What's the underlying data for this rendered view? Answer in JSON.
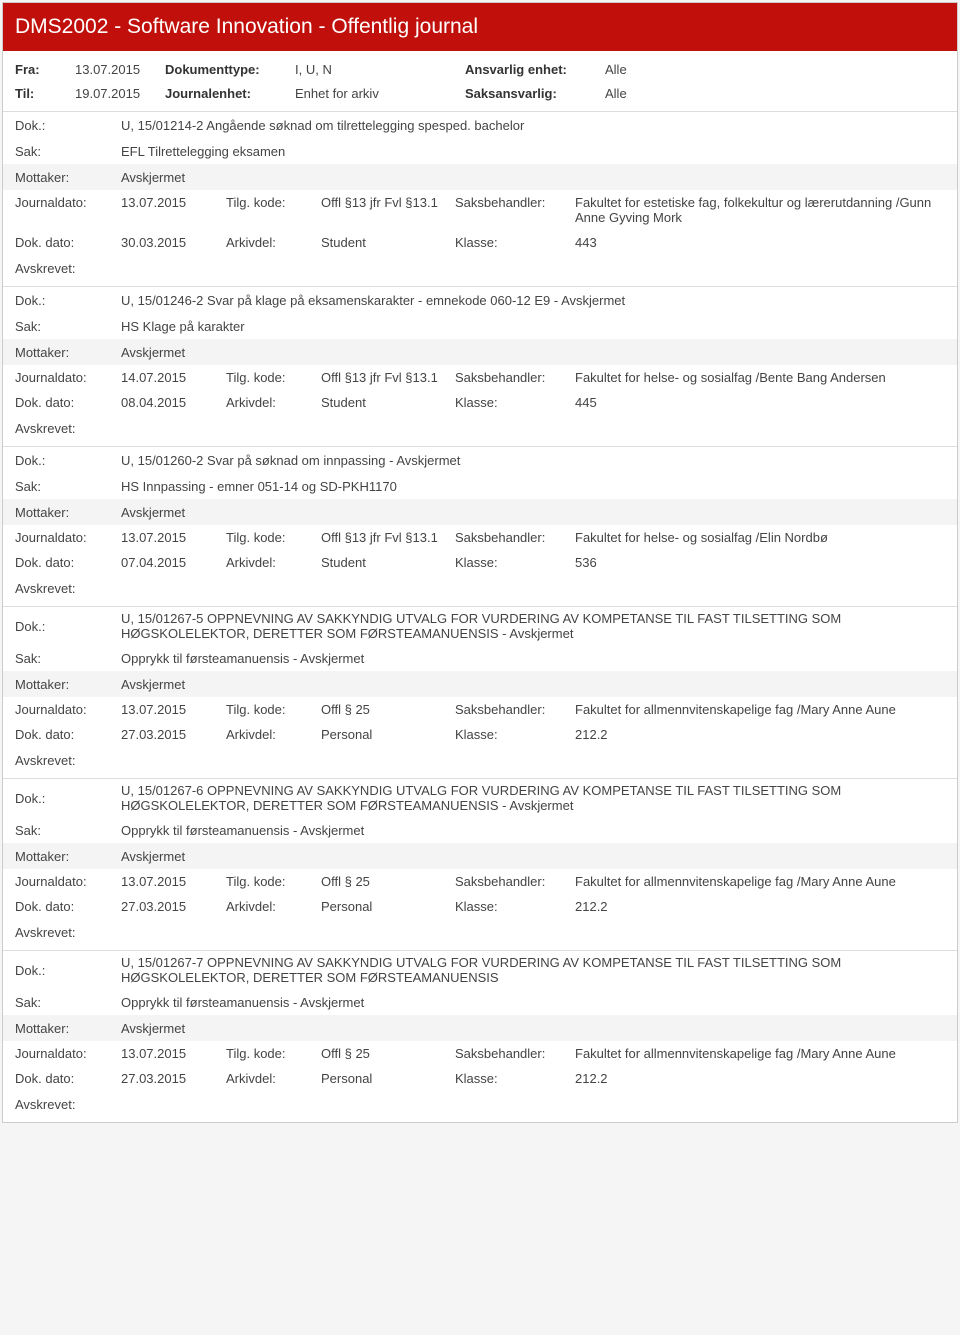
{
  "header": {
    "title": "DMS2002 - Software Innovation - Offentlig journal"
  },
  "filter": {
    "fra_label": "Fra:",
    "fra_value": "13.07.2015",
    "til_label": "Til:",
    "til_value": "19.07.2015",
    "doktype_label": "Dokumenttype:",
    "doktype_value": "I, U, N",
    "journalenhet_label": "Journalenhet:",
    "journalenhet_value": "Enhet for arkiv",
    "ansvarlig_label": "Ansvarlig enhet:",
    "ansvarlig_value": "Alle",
    "saksansvarlig_label": "Saksansvarlig:",
    "saksansvarlig_value": "Alle"
  },
  "labels": {
    "dok": "Dok.:",
    "sak": "Sak:",
    "mottaker": "Mottaker:",
    "journaldato": "Journaldato:",
    "tilgkode": "Tilg. kode:",
    "saksbehandler": "Saksbehandler:",
    "dokdato": "Dok. dato:",
    "arkivdel": "Arkivdel:",
    "klasse": "Klasse:",
    "avskrevet": "Avskrevet:"
  },
  "entries": [
    {
      "dok": "U, 15/01214-2 Angående søknad om tilrettelegging spesped. bachelor",
      "sak": "EFL Tilrettelegging eksamen",
      "mottaker": "Avskjermet",
      "journaldato": "13.07.2015",
      "tilgkode": "Offl §13 jfr Fvl §13.1",
      "saksbehandler": "Fakultet for estetiske fag, folkekultur og lærerutdanning /Gunn Anne Gyving Mork",
      "dokdato": "30.03.2015",
      "arkivdel": "Student",
      "klasse": "443"
    },
    {
      "dok": "U, 15/01246-2 Svar på klage på eksamenskarakter - emnekode 060-12 E9 - Avskjermet",
      "sak": "HS Klage på karakter",
      "mottaker": "Avskjermet",
      "journaldato": "14.07.2015",
      "tilgkode": "Offl §13 jfr Fvl §13.1",
      "saksbehandler": "Fakultet for helse- og sosialfag /Bente Bang Andersen",
      "dokdato": "08.04.2015",
      "arkivdel": "Student",
      "klasse": "445"
    },
    {
      "dok": "U, 15/01260-2 Svar på søknad om innpassing - Avskjermet",
      "sak": "HS Innpassing - emner 051-14 og SD-PKH1170",
      "mottaker": "Avskjermet",
      "journaldato": "13.07.2015",
      "tilgkode": "Offl §13 jfr Fvl §13.1",
      "saksbehandler": "Fakultet for helse- og sosialfag /Elin Nordbø",
      "dokdato": "07.04.2015",
      "arkivdel": "Student",
      "klasse": "536"
    },
    {
      "dok": "U, 15/01267-5 OPPNEVNING AV SAKKYNDIG UTVALG FOR VURDERING AV KOMPETANSE TIL FAST TILSETTING SOM HØGSKOLELEKTOR, DERETTER SOM FØRSTEAMANUENSIS - Avskjermet",
      "sak": "Opprykk til førsteamanuensis - Avskjermet",
      "mottaker": "Avskjermet",
      "journaldato": "13.07.2015",
      "tilgkode": "Offl § 25",
      "saksbehandler": "Fakultet for allmennvitenskapelige fag /Mary Anne Aune",
      "dokdato": "27.03.2015",
      "arkivdel": "Personal",
      "klasse": "212.2"
    },
    {
      "dok": "U, 15/01267-6 OPPNEVNING AV SAKKYNDIG UTVALG FOR VURDERING AV KOMPETANSE TIL FAST TILSETTING SOM HØGSKOLELEKTOR, DERETTER SOM FØRSTEAMANUENSIS - Avskjermet",
      "sak": "Opprykk til førsteamanuensis - Avskjermet",
      "mottaker": "Avskjermet",
      "journaldato": "13.07.2015",
      "tilgkode": "Offl § 25",
      "saksbehandler": "Fakultet for allmennvitenskapelige fag /Mary Anne Aune",
      "dokdato": "27.03.2015",
      "arkivdel": "Personal",
      "klasse": "212.2"
    },
    {
      "dok": "U, 15/01267-7 OPPNEVNING AV SAKKYNDIG UTVALG FOR VURDERING AV KOMPETANSE TIL FAST TILSETTING SOM HØGSKOLELEKTOR, DERETTER SOM FØRSTEAMANUENSIS",
      "sak": "Opprykk til førsteamanuensis - Avskjermet",
      "mottaker": "Avskjermet",
      "journaldato": "13.07.2015",
      "tilgkode": "Offl § 25",
      "saksbehandler": "Fakultet for allmennvitenskapelige fag /Mary Anne Aune",
      "dokdato": "27.03.2015",
      "arkivdel": "Personal",
      "klasse": "212.2"
    }
  ]
}
